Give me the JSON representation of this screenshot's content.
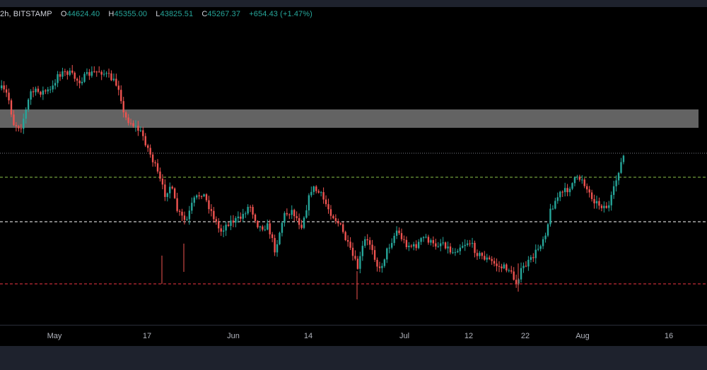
{
  "legend": {
    "interval": "2h",
    "exchange": "BITSTAMP",
    "open_label": "O",
    "open": "44624.40",
    "high_label": "H",
    "high": "45355.00",
    "low_label": "L",
    "low": "43825.51",
    "close_label": "C",
    "close": "45267.37",
    "change": "+654.43 (+1.47%)"
  },
  "colors": {
    "up": "#26a69a",
    "down": "#ef5350",
    "zone": "#6b6b6b",
    "green_line": "#8bc34a",
    "white_line": "#ffffff",
    "red_line": "#f23645"
  },
  "xaxis": {
    "labels": [
      "May",
      "17",
      "Jun",
      "14",
      "Jul",
      "12",
      "22",
      "Aug",
      "16"
    ]
  }
}
